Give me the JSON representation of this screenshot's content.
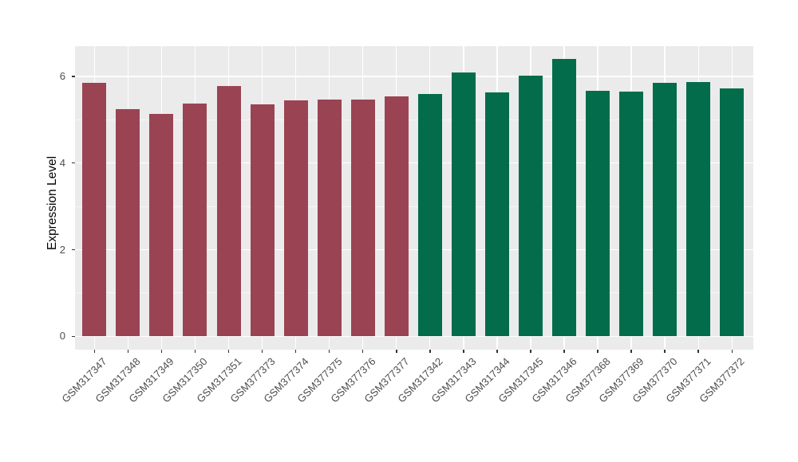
{
  "chart_data": {
    "type": "bar",
    "title": "",
    "xlabel": "",
    "ylabel": "Expression Level",
    "ylim": [
      0,
      6.7
    ],
    "yticks_major": [
      0,
      2,
      4,
      6
    ],
    "yticks_minor": [
      1,
      3,
      5
    ],
    "legend": "none",
    "grid": "white major horizontal at 0/2/4/6, minor at 1/3/5, vertical major at each category",
    "categories": [
      "GSM317347",
      "GSM317348",
      "GSM317349",
      "GSM317350",
      "GSM317351",
      "GSM377373",
      "GSM377374",
      "GSM377375",
      "GSM377376",
      "GSM377377",
      "GSM317342",
      "GSM317343",
      "GSM317344",
      "GSM317345",
      "GSM317346",
      "GSM377368",
      "GSM377369",
      "GSM377370",
      "GSM377371",
      "GSM377372"
    ],
    "series": [
      {
        "name": "left-group-maroon",
        "color": "#9A4453",
        "categories": [
          "GSM317347",
          "GSM317348",
          "GSM317349",
          "GSM317350",
          "GSM317351",
          "GSM377373",
          "GSM377374",
          "GSM377375",
          "GSM377376",
          "GSM377377"
        ],
        "values": [
          5.86,
          5.24,
          5.13,
          5.38,
          5.78,
          5.36,
          5.44,
          5.47,
          5.46,
          5.54
        ]
      },
      {
        "name": "right-group-green",
        "color": "#036C4B",
        "categories": [
          "GSM317342",
          "GSM317343",
          "GSM317344",
          "GSM317345",
          "GSM317346",
          "GSM377368",
          "GSM377369",
          "GSM377370",
          "GSM377371",
          "GSM377372"
        ],
        "values": [
          5.6,
          6.09,
          5.63,
          6.02,
          6.4,
          5.67,
          5.65,
          5.85,
          5.87,
          5.72
        ]
      }
    ]
  },
  "style_colors": {
    "figure_background": "#FFFFFF",
    "panel_background": "#EBEBEB",
    "gridline_major": "#FFFFFF",
    "gridline_minor": "#F7F7F7",
    "tick_text": "#4D4D4D",
    "tick_mark": "#333333",
    "axis_title": "#000000"
  }
}
